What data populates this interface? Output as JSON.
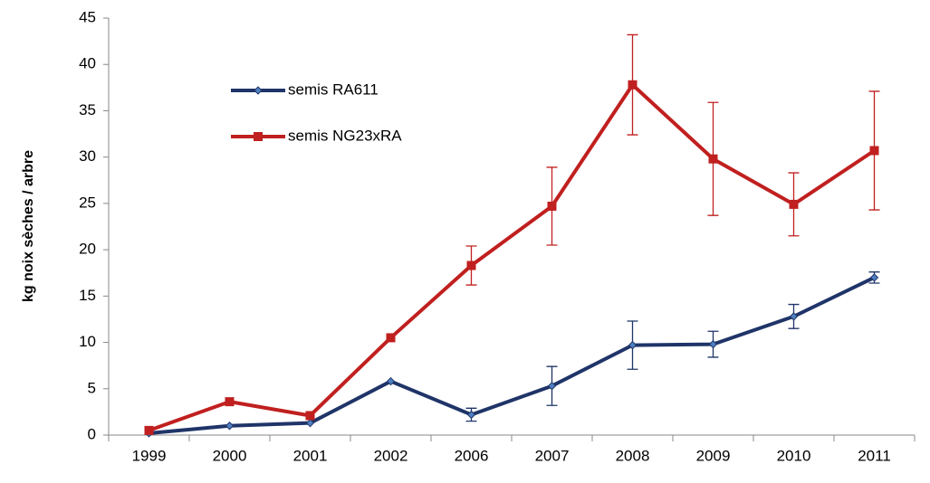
{
  "chart_data": {
    "type": "line",
    "y_label": "kg noix sèches / arbre",
    "categories": [
      "1999",
      "2000",
      "2001",
      "2002",
      "2006",
      "2007",
      "2008",
      "2009",
      "2010",
      "2011"
    ],
    "series": [
      {
        "name": "semis RA611",
        "color": "#1f3468",
        "marker": "diamond",
        "values": [
          0.2,
          1.0,
          1.3,
          5.8,
          2.2,
          5.3,
          9.7,
          9.8,
          12.8,
          17.0
        ],
        "errors": [
          null,
          null,
          null,
          null,
          0.7,
          2.1,
          2.6,
          1.4,
          1.3,
          0.6
        ]
      },
      {
        "name": "semis NG23xRA",
        "color": "#c0201f",
        "marker": "square",
        "values": [
          0.5,
          3.6,
          2.1,
          10.5,
          18.3,
          24.7,
          37.8,
          29.8,
          24.9,
          30.7
        ],
        "errors": [
          null,
          null,
          null,
          null,
          2.1,
          4.2,
          5.4,
          6.1,
          3.4,
          6.4
        ]
      }
    ],
    "ylim": [
      0,
      45
    ],
    "yticks": [
      0,
      5,
      10,
      15,
      20,
      25,
      30,
      35,
      40,
      45
    ],
    "grid": false,
    "legend": "upper left"
  }
}
